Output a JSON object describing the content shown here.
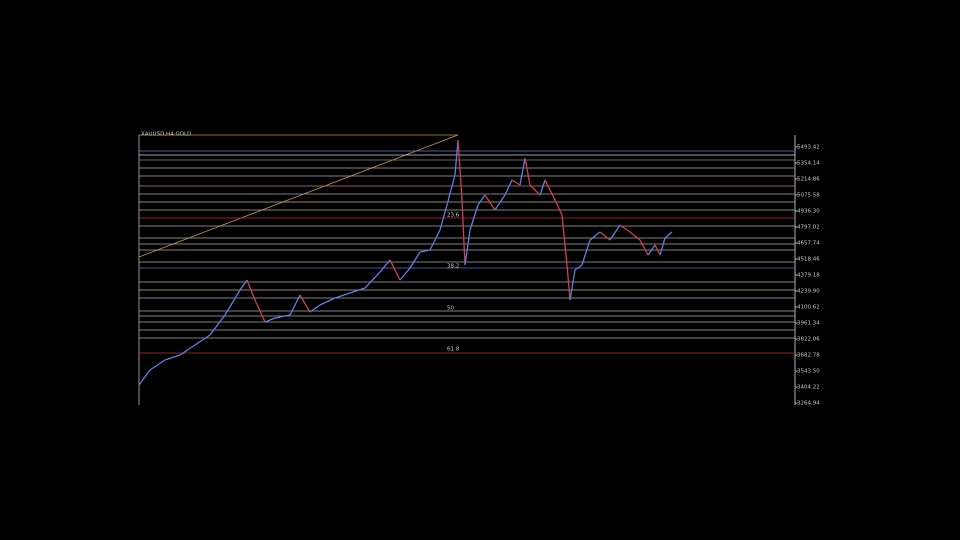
{
  "chart_data": {
    "type": "price",
    "title": "XAUUSD,H4  GOLD",
    "x": [
      0,
      11,
      26,
      41,
      56,
      71,
      86,
      101,
      108,
      116,
      126,
      136,
      151,
      161,
      171,
      181,
      196,
      211,
      226,
      241,
      251,
      261,
      271,
      281,
      291,
      301,
      308,
      316,
      319,
      323,
      326,
      331,
      339,
      346,
      356,
      366,
      373,
      381,
      386,
      391,
      401,
      406,
      416,
      423,
      428,
      431,
      436,
      443,
      451,
      461,
      471,
      481,
      491,
      501,
      509,
      516,
      521,
      526,
      533
    ],
    "values": [
      3421.6,
      3552.2,
      3639.2,
      3682.8,
      3769.8,
      3856.9,
      4031.0,
      4248.6,
      4335.7,
      4161.6,
      3970.0,
      4004.9,
      4031.0,
      4205.1,
      4057.1,
      4118.0,
      4179.0,
      4222.5,
      4266.0,
      4405.3,
      4509.8,
      4335.7,
      4440.1,
      4579.4,
      4596.8,
      4771.0,
      4988.5,
      5249.7,
      5554.3,
      5032.1,
      4466.2,
      4771.0,
      4988.5,
      5075.6,
      4945.0,
      5075.6,
      5206.2,
      5162.6,
      5397.6,
      5162.6,
      5075.6,
      5206.2,
      5032.1,
      4901.5,
      4466.2,
      4161.6,
      4422.7,
      4466.2,
      4683.9,
      4753.5,
      4683.9,
      4814.4,
      4753.5,
      4683.9,
      4553.2,
      4640.3,
      4553.2,
      4701.3,
      4753.5
    ],
    "up_color": "#5f7fe0",
    "down_color": "#d04050",
    "xlim": [
      0,
      656
    ],
    "ylim": [
      3247.5,
      5597.9
    ],
    "yticks": [
      3264.94,
      3404.22,
      {
        "value": 3543.5,
        "label": "3543.50"
      },
      3682.78,
      3822.06,
      3961.34,
      4100.62,
      {
        "value": 4239.9,
        "label": "4239.90"
      },
      4379.18,
      4518.46,
      4657.74,
      4797.02,
      {
        "value": 4936.3,
        "label": "4936.30"
      },
      5075.58,
      5214.86,
      5354.14,
      5493.42
    ],
    "levels": [
      {
        "value": 5458.6,
        "color": "#6a78c8"
      },
      {
        "value": 5423.8,
        "color": "#cfcfcf"
      },
      {
        "value": 5380.2,
        "color": "#888888"
      },
      {
        "value": 5310.6,
        "color": "#aaaaaa"
      },
      {
        "value": 5241.0,
        "color": "#aaaaaa"
      },
      {
        "value": 5153.9,
        "color": "#c77aa0"
      },
      {
        "value": 5084.2,
        "color": "#aaaaaa"
      },
      {
        "value": 5014.6,
        "color": "#c8b48a"
      },
      {
        "value": 4945.0,
        "color": "#aaaaaa"
      },
      {
        "value": 4875.3,
        "color": "#c03030"
      },
      {
        "value": 4805.7,
        "color": "#aaaaaa"
      },
      {
        "value": 4701.3,
        "color": "#aaaaaa"
      },
      {
        "value": 4649.0,
        "color": "#aaaaaa"
      },
      {
        "value": 4596.8,
        "color": "#aaaaaa"
      },
      {
        "value": 4492.3,
        "color": "#aaaaaa"
      },
      {
        "value": 4440.1,
        "color": "#5a6ad0"
      },
      {
        "value": 4318.2,
        "color": "#aaaaaa"
      },
      {
        "value": 4248.6,
        "color": "#c8b48a"
      },
      {
        "value": 4179.0,
        "color": "#aaaaaa"
      },
      {
        "value": 4065.8,
        "color": "#aaaaaa"
      },
      {
        "value": 4022.2,
        "color": "#aaaaaa"
      },
      {
        "value": 3970.0,
        "color": "#aaaaaa"
      },
      {
        "value": 3900.4,
        "color": "#aaaaaa"
      },
      {
        "value": 3830.8,
        "color": "#aaaaaa"
      },
      {
        "value": 3700.2,
        "color": "#c03030"
      }
    ],
    "fib": [
      {
        "level": 23.6,
        "value": 4901.5
      },
      {
        "level": 38.2,
        "value": 4457.5
      },
      {
        "level": 50.0,
        "value": 4091.9
      },
      {
        "level": 61.8,
        "value": 3735.0
      }
    ]
  }
}
